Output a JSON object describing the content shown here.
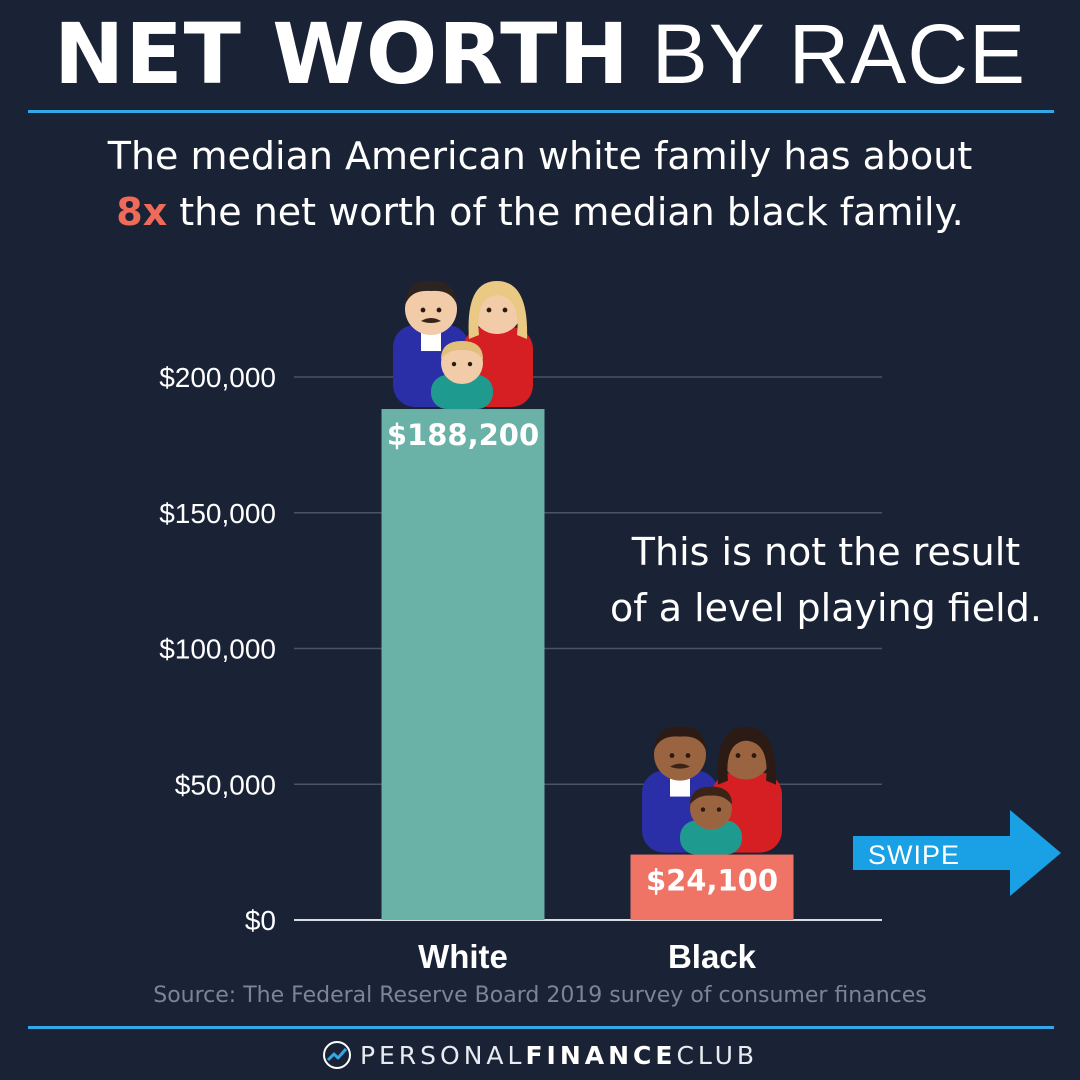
{
  "header": {
    "title_bold": "NET WORTH",
    "title_light": "BY RACE"
  },
  "subtitle": {
    "line1": "The median American white family has about",
    "highlight": "8x",
    "line2_rest": " the net worth of the median black family."
  },
  "annotation": {
    "line1": "This is not the result",
    "line2": "of a level playing field."
  },
  "source": "Source: The Federal Reserve Board 2019 survey of consumer finances",
  "footer": {
    "brand_light_1": "PERSONAL",
    "brand_bold": "FINANCE",
    "brand_light_2": "CLUB"
  },
  "swipe": {
    "label": "SWIPE",
    "color": "#1aa0e4"
  },
  "colors": {
    "background": "#1a2335",
    "accent_rule": "#33a8e8",
    "highlight": "#ef6a59"
  },
  "chart_data": {
    "type": "bar",
    "categories": [
      "White",
      "Black"
    ],
    "values": [
      188200,
      24100
    ],
    "value_labels": [
      "$188,200",
      "$24,100"
    ],
    "bar_colors": [
      "#6ab1a8",
      "#ef7465"
    ],
    "ylim": [
      0,
      200000
    ],
    "yticks": [
      0,
      50000,
      100000,
      150000,
      200000
    ],
    "ytick_labels": [
      "$0",
      "$50,000",
      "$100,000",
      "$150,000",
      "$200,000"
    ],
    "grid": true,
    "family_icons": [
      "white-family-icon",
      "black-family-icon"
    ]
  }
}
